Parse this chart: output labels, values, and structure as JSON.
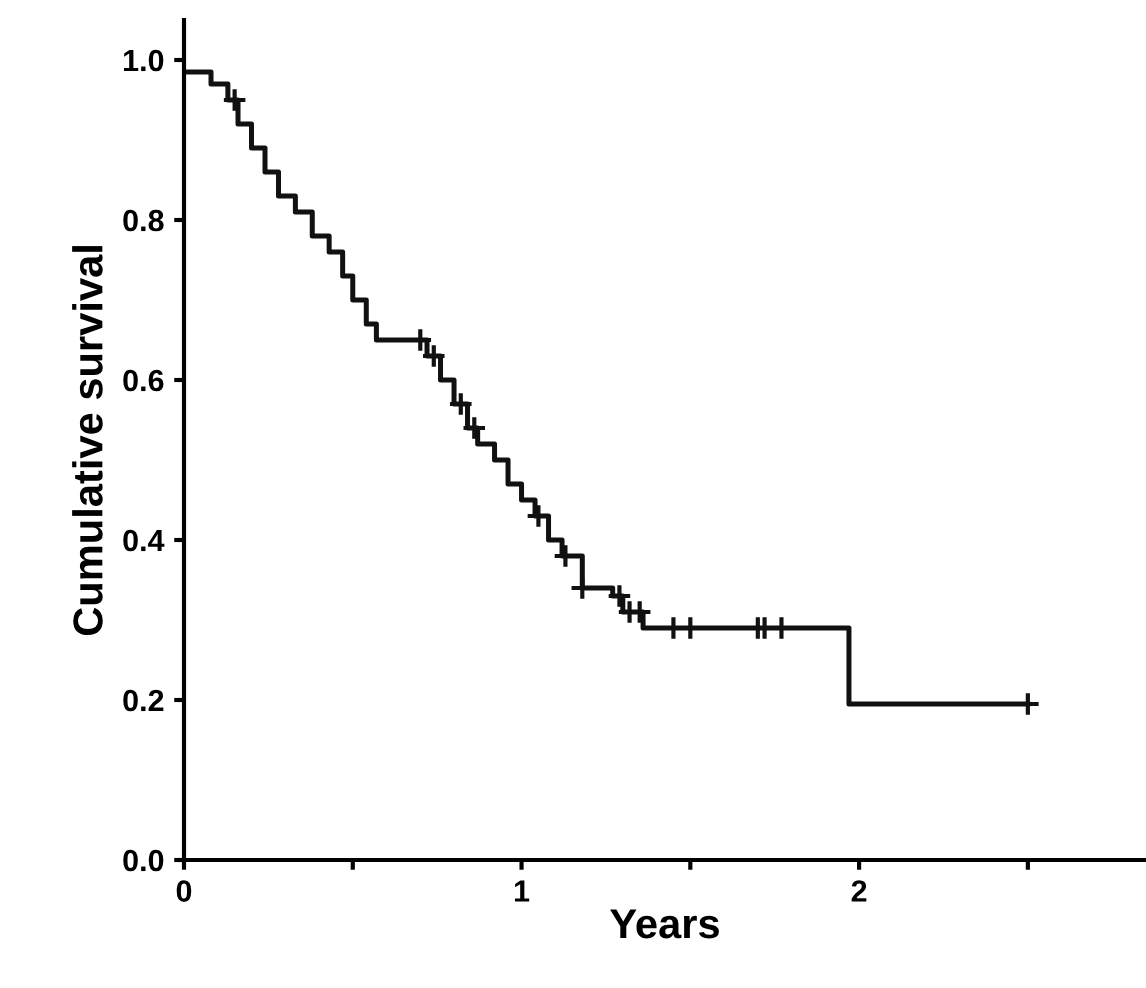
{
  "chart_data": {
    "type": "step",
    "xlabel": "Years",
    "ylabel": "Cumulative survival",
    "series": [
      {
        "color": "#111111",
        "marker": "none",
        "x": [
          0,
          0.08,
          0.13,
          0.16,
          0.2,
          0.24,
          0.28,
          0.33,
          0.38,
          0.43,
          0.47,
          0.5,
          0.54,
          0.57,
          0.72,
          0.76,
          0.8,
          0.84,
          0.87,
          0.92,
          0.96,
          1.0,
          1.04,
          1.08,
          1.12,
          1.18,
          1.27,
          1.3,
          1.36,
          1.97,
          2.5
        ],
        "values": [
          0.985,
          0.97,
          0.95,
          0.92,
          0.89,
          0.86,
          0.83,
          0.81,
          0.78,
          0.76,
          0.73,
          0.7,
          0.67,
          0.65,
          0.63,
          0.6,
          0.57,
          0.54,
          0.52,
          0.5,
          0.47,
          0.45,
          0.43,
          0.4,
          0.38,
          0.34,
          0.33,
          0.31,
          0.29,
          0.195,
          0.195
        ]
      },
      {
        "type": "scatter",
        "color": "#111111",
        "marker": "cross",
        "x": [
          0.15,
          0.7,
          0.74,
          0.82,
          0.86,
          1.05,
          1.13,
          1.18,
          1.29,
          1.32,
          1.35,
          1.45,
          1.5,
          1.7,
          1.72,
          1.77,
          2.5
        ],
        "values": [
          0.95,
          0.65,
          0.63,
          0.57,
          0.54,
          0.43,
          0.38,
          0.34,
          0.33,
          0.31,
          0.31,
          0.29,
          0.29,
          0.29,
          0.29,
          0.29,
          0.195
        ]
      }
    ],
    "xlim": [
      0,
      2.85
    ],
    "ylim": [
      0,
      1.05
    ],
    "xticks": [
      0,
      {
        "value": 0.5,
        "label": null
      },
      1,
      {
        "value": 1.5,
        "label": null
      },
      2,
      {
        "value": 2.5,
        "label": null
      }
    ],
    "yticks": [
      {
        "value": 0,
        "label": "0.0"
      },
      0.2,
      0.4,
      0.6,
      0.8,
      {
        "value": 1,
        "label": "1.0"
      }
    ],
    "grid": false,
    "legend": false
  }
}
